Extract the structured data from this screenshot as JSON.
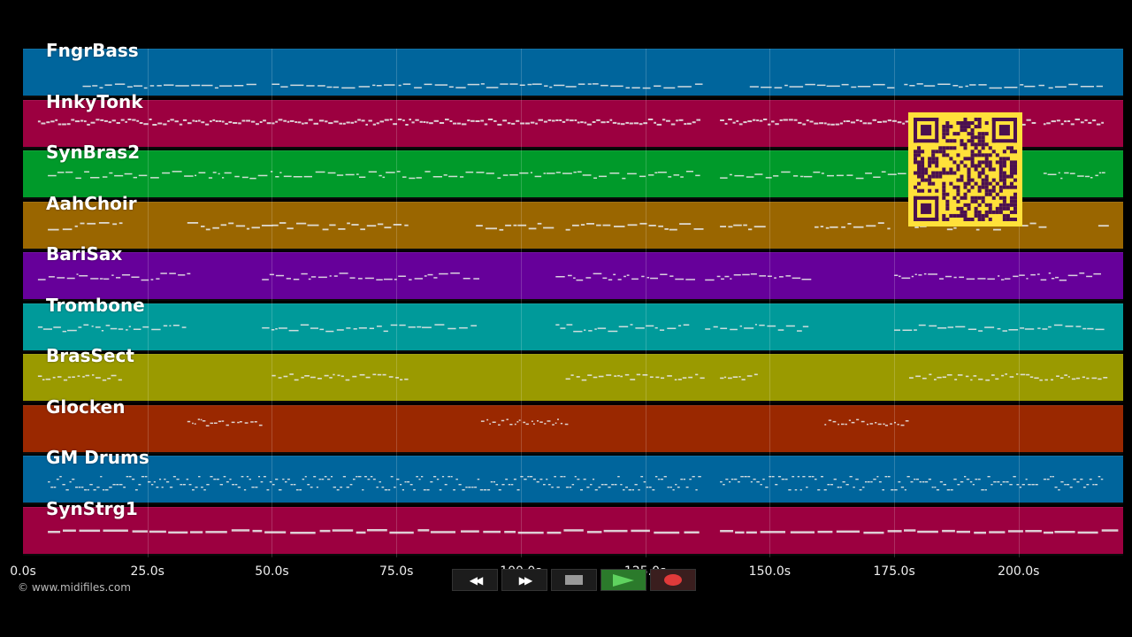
{
  "tracks": [
    {
      "name": "FngrBass",
      "color": "#00659c",
      "pattern": "bass"
    },
    {
      "name": "HnkyTonk",
      "color": "#9c0040",
      "pattern": "dense"
    },
    {
      "name": "SynBras2",
      "color": "#009a2a",
      "pattern": "melody"
    },
    {
      "name": "AahChoir",
      "color": "#9a6600",
      "pattern": "choir"
    },
    {
      "name": "BariSax",
      "color": "#66009a",
      "pattern": "sax"
    },
    {
      "name": "Trombone",
      "color": "#009a9a",
      "pattern": "sax"
    },
    {
      "name": "BrasSect",
      "color": "#9a9a00",
      "pattern": "brass"
    },
    {
      "name": "Glocken",
      "color": "#9a2800",
      "pattern": "glock"
    },
    {
      "name": "GM Drums",
      "color": "#00659c",
      "pattern": "drums"
    },
    {
      "name": "SynStrg1",
      "color": "#9c0040",
      "pattern": "strings"
    }
  ],
  "timeline": {
    "ticks": [
      "0.0s",
      "25.0s",
      "50.0s",
      "75.0s",
      "100.0s",
      "125.0s",
      "150.0s",
      "175.0s",
      "200.0s"
    ],
    "tick_values": [
      0,
      25,
      50,
      75,
      100,
      125,
      150,
      175,
      200
    ],
    "max_seconds": 221
  },
  "transport": {
    "rewind_label": "◀◀",
    "forward_label": "▶▶",
    "stop_label": "■",
    "play_label": "▶",
    "record_label": "●",
    "play_color": "#5fd35f",
    "record_color": "#e03a3a"
  },
  "copyright": "© www.midifiles.com",
  "qr": {
    "background": "#ffe13a",
    "module_color": "#4a1050"
  }
}
